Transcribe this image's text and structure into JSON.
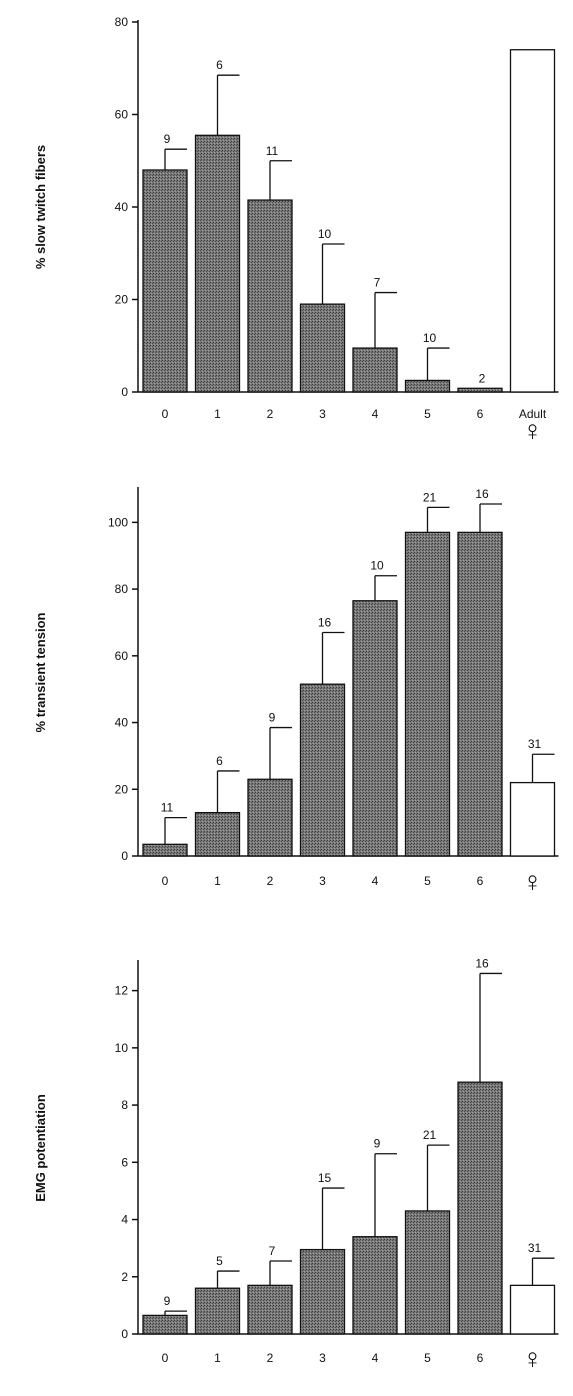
{
  "chart_data": [
    {
      "type": "bar",
      "ylabel": "% slow twitch fibers",
      "ylim": [
        0,
        80
      ],
      "yticks": [
        0,
        20,
        40,
        60,
        80
      ],
      "categories": [
        "0",
        "1",
        "2",
        "3",
        "4",
        "5",
        "6",
        "Adult"
      ],
      "category_symbols": [
        "",
        "",
        "",
        "",
        "",
        "",
        "",
        "♀"
      ],
      "values": [
        48,
        55.5,
        41.5,
        19,
        9.5,
        2.5,
        0.8,
        74
      ],
      "errors": [
        4.5,
        13,
        8.5,
        13,
        12,
        7,
        null,
        null
      ],
      "n": [
        "9",
        "6",
        "11",
        "10",
        "7",
        "10",
        "2",
        ""
      ],
      "bar_styles": [
        "shaded",
        "shaded",
        "shaded",
        "shaded",
        "shaded",
        "shaded",
        "shaded",
        "open"
      ]
    },
    {
      "type": "bar",
      "ylabel": "% transient tension",
      "ylim": [
        0,
        110
      ],
      "yticks": [
        0,
        20,
        40,
        60,
        80,
        100
      ],
      "categories": [
        "0",
        "1",
        "2",
        "3",
        "4",
        "5",
        "6",
        ""
      ],
      "category_symbols": [
        "",
        "",
        "",
        "",
        "",
        "",
        "",
        "♀"
      ],
      "values": [
        3.5,
        13,
        23,
        51.5,
        76.5,
        97,
        97,
        22
      ],
      "errors": [
        8,
        12.5,
        15.5,
        15.5,
        7.5,
        7.5,
        8.5,
        8.5
      ],
      "n": [
        "11",
        "6",
        "9",
        "16",
        "10",
        "21",
        "16",
        "31"
      ],
      "bar_styles": [
        "shaded",
        "shaded",
        "shaded",
        "shaded",
        "shaded",
        "shaded",
        "shaded",
        "open"
      ]
    },
    {
      "type": "bar",
      "ylabel": "EMG potentiation",
      "ylim": [
        0,
        13
      ],
      "yticks": [
        0,
        2,
        4,
        6,
        8,
        10,
        12
      ],
      "categories": [
        "0",
        "1",
        "2",
        "3",
        "4",
        "5",
        "6",
        ""
      ],
      "category_symbols": [
        "",
        "",
        "",
        "",
        "",
        "",
        "",
        "♀"
      ],
      "values": [
        0.65,
        1.6,
        1.7,
        2.95,
        3.4,
        4.3,
        8.8,
        1.7
      ],
      "errors": [
        0.15,
        0.6,
        0.85,
        2.15,
        2.9,
        2.3,
        3.8,
        0.95
      ],
      "n": [
        "9",
        "5",
        "7",
        "15",
        "9",
        "21",
        "16",
        "31"
      ],
      "bar_styles": [
        "shaded",
        "shaded",
        "shaded",
        "shaded",
        "shaded",
        "shaded",
        "shaded",
        "open"
      ]
    }
  ],
  "colors": {
    "shaded_bar": "#6f6f6f",
    "open_bar": "#ffffff",
    "stroke": "#111111"
  }
}
